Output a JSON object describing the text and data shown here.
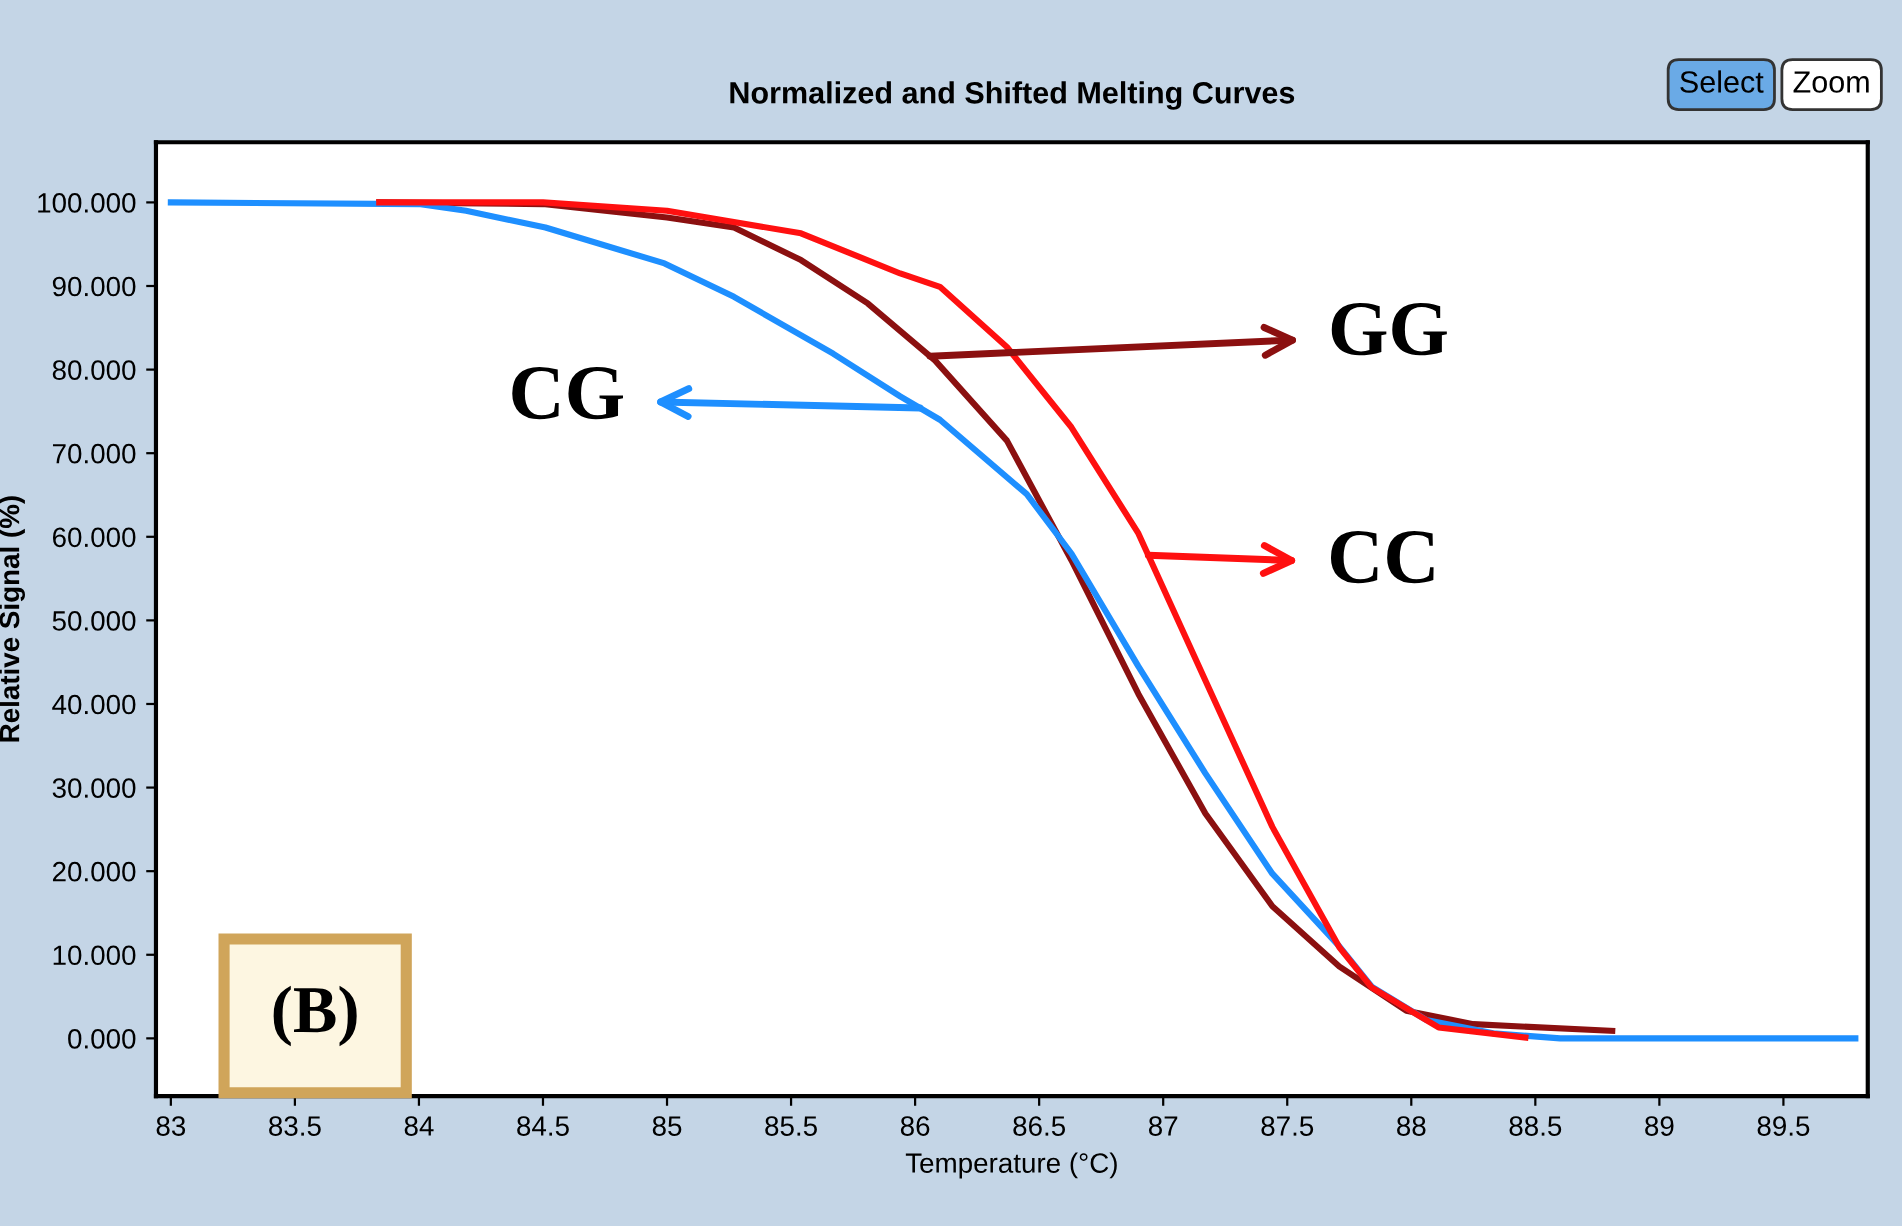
{
  "chart_data": {
    "type": "line",
    "title": "Normalized and Shifted Melting Curves",
    "xlabel": "Temperature (°C)",
    "ylabel": "Relative Signal (%)",
    "xlim": [
      82.94,
      89.84
    ],
    "ylim": [
      -6.9,
      107.2
    ],
    "xticks": [
      83,
      83.5,
      84,
      84.5,
      85,
      85.5,
      86,
      86.5,
      87,
      87.5,
      88,
      88.5,
      89,
      89.5
    ],
    "yticks": [
      {
        "value": 0,
        "label": "0.000"
      },
      {
        "value": 10,
        "label": "10.000"
      },
      {
        "value": 20,
        "label": "20.000"
      },
      {
        "value": 30,
        "label": "30.000"
      },
      {
        "value": 40,
        "label": "40.000"
      },
      {
        "value": 50,
        "label": "50.000"
      },
      {
        "value": 60,
        "label": "60.000"
      },
      {
        "value": 70,
        "label": "70.000"
      },
      {
        "value": 80,
        "label": "80.000"
      },
      {
        "value": 90,
        "label": "90.000"
      },
      {
        "value": 100,
        "label": "100.000"
      }
    ],
    "grid": false,
    "legend": "top right",
    "marker": "none",
    "line_style": "solid",
    "series": [
      {
        "name": "GG",
        "color": "#8b1010",
        "x": [
          83.84,
          84.5,
          85.0,
          85.27,
          85.54,
          85.81,
          86.08,
          86.37,
          86.63,
          86.9,
          87.17,
          87.44,
          87.71,
          87.98,
          88.25,
          88.81
        ],
        "values": [
          100,
          99.8,
          98.2,
          97.0,
          93.1,
          87.9,
          81.1,
          71.5,
          57.2,
          41.2,
          26.9,
          15.8,
          8.6,
          3.3,
          1.7,
          0.9
        ]
      },
      {
        "name": "CG",
        "color": "#1e8fff",
        "x": [
          83.0,
          84.0,
          84.19,
          84.51,
          84.99,
          85.27,
          85.67,
          85.94,
          86.1,
          86.45,
          86.63,
          86.9,
          87.17,
          87.44,
          87.71,
          87.84,
          88.06,
          88.33,
          88.6,
          89.79
        ],
        "values": [
          100,
          99.8,
          99.0,
          97.0,
          92.7,
          88.7,
          81.9,
          76.8,
          74.0,
          65.1,
          58.0,
          44.5,
          31.7,
          19.7,
          11.0,
          6.2,
          2.2,
          0.6,
          0,
          0
        ]
      },
      {
        "name": "CC",
        "color": "#ff1010",
        "x": [
          83.84,
          84.5,
          85.0,
          85.54,
          85.94,
          86.1,
          86.37,
          86.63,
          86.9,
          87.17,
          87.44,
          87.71,
          87.84,
          88.11,
          88.46
        ],
        "values": [
          100,
          100,
          99.0,
          96.3,
          91.5,
          89.9,
          82.7,
          73.1,
          60.4,
          42.8,
          25.3,
          10.9,
          6.1,
          1.3,
          0.1
        ]
      }
    ],
    "annotations": [
      "(B)",
      "Select",
      "Zoom"
    ]
  }
}
